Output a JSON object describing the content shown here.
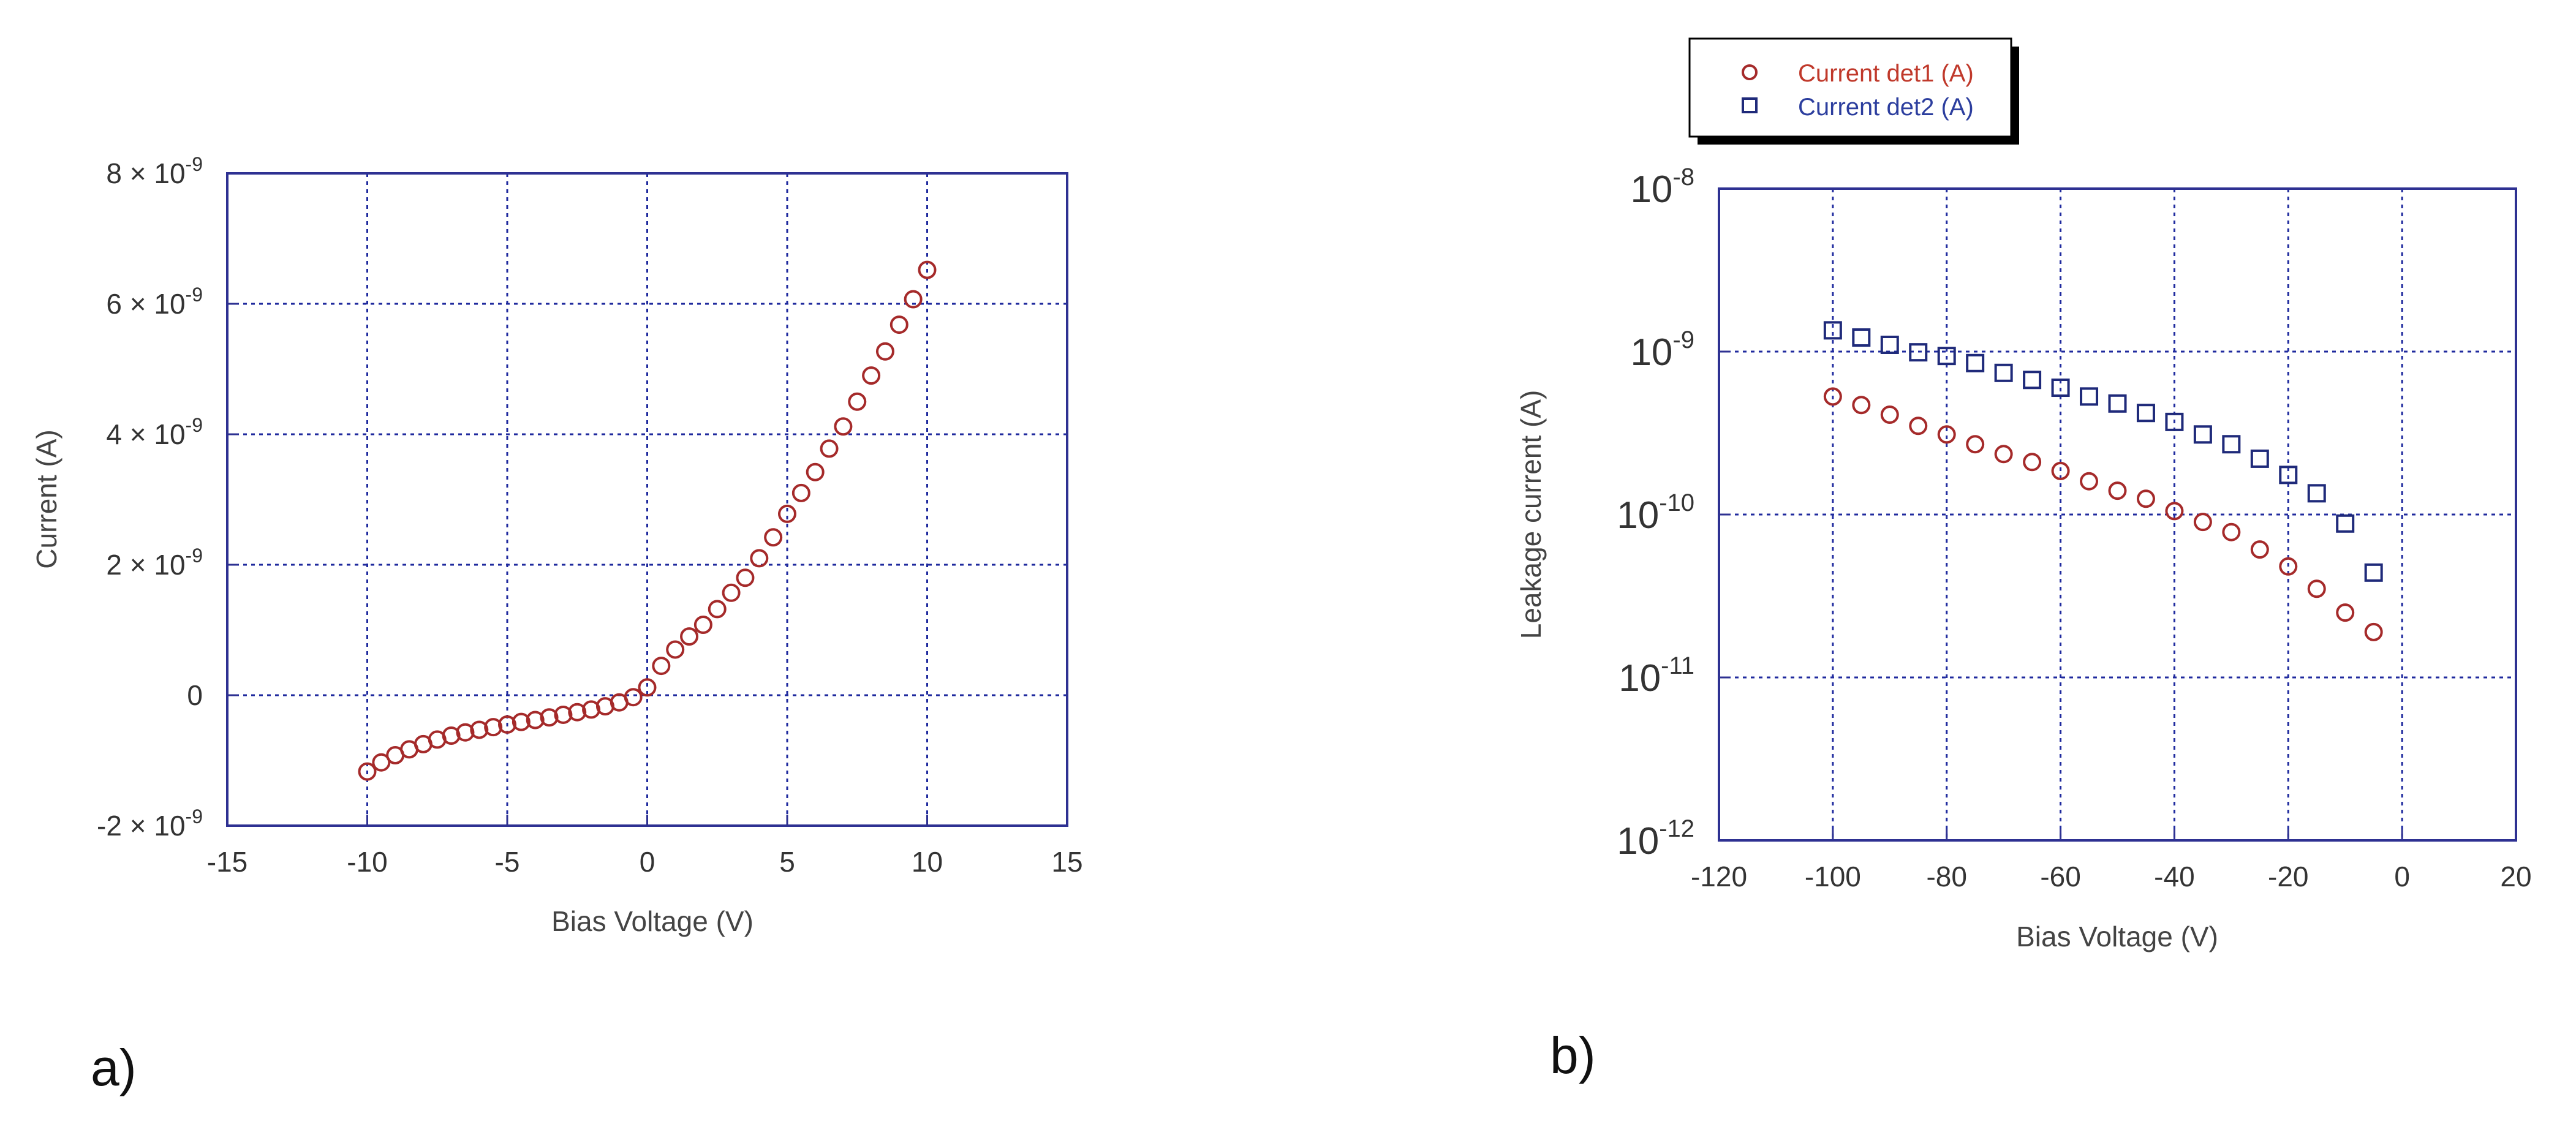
{
  "colors": {
    "axis": "#2e3192",
    "grid": "#1f2a9e",
    "det1": "#a52a2a",
    "det2": "#1f2a7a",
    "tick_text": "#333333"
  },
  "panels": {
    "a": {
      "label": "a)"
    },
    "b": {
      "label": "b)"
    }
  },
  "chart_data": [
    {
      "type": "scatter",
      "title": "",
      "xlabel": "Bias Voltage (V)",
      "ylabel": "Current (A)",
      "xlim": [
        -15,
        15
      ],
      "ylim": [
        -2e-09,
        8e-09
      ],
      "xticks": [
        -15,
        -10,
        -5,
        0,
        5,
        10,
        15
      ],
      "xtick_labels": [
        "-15",
        "-10",
        "-5",
        "0",
        "5",
        "10",
        "15"
      ],
      "yticks": [
        -2e-09,
        0,
        2e-09,
        4e-09,
        6e-09,
        8e-09
      ],
      "ytick_labels": [
        "-2 × 10",
        "0",
        "2 × 10",
        "4 × 10",
        "6 × 10",
        "8 × 10"
      ],
      "ytick_exponents": [
        "-9",
        "",
        "-9",
        "-9",
        "-9",
        "-9"
      ],
      "grid": true,
      "series": [
        {
          "name": "Current",
          "marker": "circle",
          "x": [
            -10,
            -9.5,
            -9,
            -8.5,
            -8,
            -7.5,
            -7,
            -6.5,
            -6,
            -5.5,
            -5,
            -4.5,
            -4,
            -3.5,
            -3,
            -2.5,
            -2,
            -1.5,
            -1,
            -0.5,
            0,
            0.5,
            1,
            1.5,
            2,
            2.5,
            3,
            3.5,
            4,
            4.5,
            5,
            5.5,
            6,
            6.5,
            7,
            7.5,
            8,
            8.5,
            9,
            9.5,
            10
          ],
          "y": [
            -1.17e-09,
            -1.03e-09,
            -9.2e-10,
            -8.3e-10,
            -7.5e-10,
            -6.8e-10,
            -6.2e-10,
            -5.7e-10,
            -5.3e-10,
            -4.9e-10,
            -4.5e-10,
            -4.1e-10,
            -3.8e-10,
            -3.4e-10,
            -3e-10,
            -2.6e-10,
            -2.2e-10,
            -1.7e-10,
            -1.1e-10,
            -3e-11,
            1.2e-10,
            4.5e-10,
            7e-10,
            9e-10,
            1.08e-09,
            1.32e-09,
            1.57e-09,
            1.8e-09,
            2.1e-09,
            2.42e-09,
            2.78e-09,
            3.1e-09,
            3.42e-09,
            3.78e-09,
            4.12e-09,
            4.5e-09,
            4.9e-09,
            5.27e-09,
            5.68e-09,
            6.07e-09,
            6.52e-09
          ]
        }
      ]
    },
    {
      "type": "scatter",
      "title": "",
      "xlabel": "Bias Voltage (V)",
      "ylabel": "Leakage current (A)",
      "xlim": [
        -120,
        20
      ],
      "ylim": [
        1e-12,
        1e-08
      ],
      "yscale": "log",
      "xticks": [
        -120,
        -100,
        -80,
        -60,
        -40,
        -20,
        0,
        20
      ],
      "xtick_labels": [
        "-120",
        "-100",
        "-80",
        "-60",
        "-40",
        "-20",
        "0",
        "20"
      ],
      "yticks": [
        1e-12,
        1e-11,
        1e-10,
        1e-09,
        1e-08
      ],
      "ytick_labels": [
        "10",
        "10",
        "10",
        "10",
        "10"
      ],
      "ytick_exponents": [
        "-12",
        "-11",
        "-10",
        "-9",
        "-8"
      ],
      "grid": true,
      "legend": {
        "position": "top-left, outside"
      },
      "series": [
        {
          "name": "Current det1 (A)",
          "marker": "circle",
          "x": [
            -100,
            -95,
            -90,
            -85,
            -80,
            -75,
            -70,
            -65,
            -60,
            -55,
            -50,
            -45,
            -40,
            -35,
            -30,
            -25,
            -20,
            -15,
            -10,
            -5
          ],
          "y": [
            5.3e-10,
            4.7e-10,
            4.1e-10,
            3.5e-10,
            3.1e-10,
            2.7e-10,
            2.35e-10,
            2.1e-10,
            1.85e-10,
            1.6e-10,
            1.4e-10,
            1.25e-10,
            1.05e-10,
            9e-11,
            7.8e-11,
            6.1e-11,
            4.8e-11,
            3.5e-11,
            2.5e-11,
            1.9e-11
          ]
        },
        {
          "name": "Current det2 (A)",
          "marker": "square",
          "x": [
            -100,
            -95,
            -90,
            -85,
            -80,
            -75,
            -70,
            -65,
            -60,
            -55,
            -50,
            -45,
            -40,
            -35,
            -30,
            -25,
            -20,
            -15,
            -10,
            -5
          ],
          "y": [
            1.35e-09,
            1.22e-09,
            1.1e-09,
            9.9e-10,
            9.4e-10,
            8.5e-10,
            7.4e-10,
            6.7e-10,
            6e-10,
            5.3e-10,
            4.8e-10,
            4.2e-10,
            3.7e-10,
            3.1e-10,
            2.7e-10,
            2.2e-10,
            1.75e-10,
            1.35e-10,
            8.8e-11,
            4.4e-11
          ]
        }
      ]
    }
  ]
}
